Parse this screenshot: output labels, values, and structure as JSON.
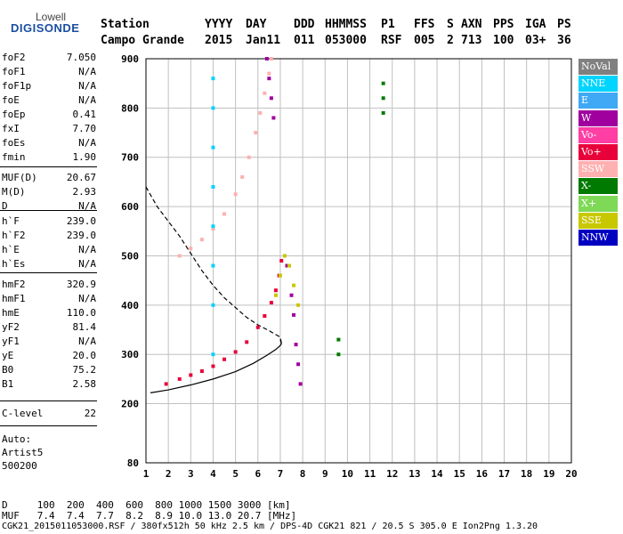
{
  "logo": {
    "top": "Lowell",
    "main": "DIGISONDE"
  },
  "header": {
    "labels": [
      "Station",
      "YYYY",
      "DAY",
      "DDD",
      "HHMMSS",
      "P1",
      "FFS",
      "S",
      "AXN",
      "PPS",
      "IGA",
      "PS"
    ],
    "values": [
      "Campo Grande",
      "2015",
      "Jan11",
      "011",
      "053000",
      "RSF",
      "005",
      "2",
      "713",
      "100",
      "03+",
      "36"
    ]
  },
  "params": [
    {
      "label": "foF2",
      "value": "7.050"
    },
    {
      "label": "foF1",
      "value": "N/A"
    },
    {
      "label": "foF1p",
      "value": "N/A"
    },
    {
      "label": "foE",
      "value": "N/A"
    },
    {
      "label": "foEp",
      "value": "0.41"
    },
    {
      "label": "fxI",
      "value": "7.70"
    },
    {
      "label": "foEs",
      "value": "N/A"
    },
    {
      "label": "fmin",
      "value": "1.90"
    },
    {
      "label": "MUF(D)",
      "value": "20.67"
    },
    {
      "label": "M(D)",
      "value": "2.93"
    },
    {
      "label": "D",
      "value": "N/A"
    },
    {
      "label": "h`F",
      "value": "239.0"
    },
    {
      "label": "h`F2",
      "value": "239.0"
    },
    {
      "label": "h`E",
      "value": "N/A"
    },
    {
      "label": "h`Es",
      "value": "N/A"
    },
    {
      "label": "hmF2",
      "value": "320.9"
    },
    {
      "label": "hmF1",
      "value": "N/A"
    },
    {
      "label": "hmE",
      "value": "110.0"
    },
    {
      "label": "yF2",
      "value": "81.4"
    },
    {
      "label": "yF1",
      "value": "N/A"
    },
    {
      "label": "yE",
      "value": "20.0"
    },
    {
      "label": "B0",
      "value": "75.2"
    },
    {
      "label": "B1",
      "value": "2.58"
    },
    {
      "label": "C-level",
      "value": "22"
    }
  ],
  "autoscale": {
    "line1": "Auto:",
    "line2": "Artist5",
    "line3": "500200"
  },
  "legend": [
    {
      "label": "NoVal",
      "color": "#808080"
    },
    {
      "label": "NNE",
      "color": "#00d4ff"
    },
    {
      "label": "E",
      "color": "#3fa9f5"
    },
    {
      "label": "W",
      "color": "#a0009e"
    },
    {
      "label": "Vo-",
      "color": "#ff3fa4"
    },
    {
      "label": "Vo+",
      "color": "#e8003a"
    },
    {
      "label": "SSW",
      "color": "#ffb0b0"
    },
    {
      "label": "X-",
      "color": "#007a00"
    },
    {
      "label": "X+",
      "color": "#7ed957"
    },
    {
      "label": "SSE",
      "color": "#c8c800"
    },
    {
      "label": "NNW",
      "color": "#0000c0"
    }
  ],
  "footer": {
    "d_row": "D     100  200  400  600  800 1000 1500 3000 [km]",
    "muf_row": "MUF   7.4  7.4  7.7  8.2  8.9 10.0 13.0 20.7 [MHz]",
    "file_row": "CGK21_2015011053000.RSF / 380fx512h 50 kHz 2.5 km / DPS-4D CGK21 821 / 20.5 S 305.0 E Ion2Png 1.3.20"
  },
  "chart_data": {
    "type": "scatter",
    "xlim": [
      1,
      20
    ],
    "ylim": [
      80,
      900
    ],
    "xticks": [
      1,
      2,
      3,
      4,
      5,
      6,
      7,
      8,
      9,
      10,
      11,
      12,
      13,
      14,
      15,
      16,
      17,
      18,
      19,
      20
    ],
    "yticks": [
      80,
      200,
      300,
      400,
      500,
      600,
      700,
      800,
      900
    ],
    "grid": true,
    "legend_position": "right",
    "series": [
      {
        "color": "#e8003a",
        "x": [
          1.9,
          2.5,
          3.0,
          3.5,
          4.0,
          4.5,
          5.0,
          5.5,
          6.0,
          6.3,
          6.6,
          6.8,
          6.95,
          7.05
        ],
        "y": [
          240,
          250,
          258,
          266,
          276,
          290,
          305,
          325,
          355,
          378,
          405,
          430,
          460,
          490
        ]
      },
      {
        "color": "#ffb0b0",
        "x": [
          2.5,
          3.0,
          3.5,
          4.0,
          4.5,
          5.0,
          5.3,
          5.6,
          5.9,
          6.1,
          6.3,
          6.5,
          6.6
        ],
        "y": [
          500,
          515,
          533,
          555,
          585,
          625,
          660,
          700,
          750,
          790,
          830,
          870,
          900
        ]
      },
      {
        "color": "#a0009e",
        "x": [
          6.4,
          6.5,
          6.6,
          6.7,
          7.3,
          7.5,
          7.6,
          7.7,
          7.8,
          7.9
        ],
        "y": [
          900,
          860,
          820,
          780,
          480,
          420,
          380,
          320,
          280,
          240
        ]
      },
      {
        "color": "#00d4ff",
        "x": [
          4.0,
          4.0,
          4.0,
          4.0,
          4.0,
          4.0,
          4.0,
          4.0
        ],
        "y": [
          860,
          800,
          720,
          640,
          560,
          480,
          400,
          300
        ]
      },
      {
        "color": "#007a00",
        "x": [
          11.6,
          11.6,
          11.6,
          9.6,
          9.6
        ],
        "y": [
          850,
          820,
          790,
          330,
          300
        ]
      },
      {
        "color": "#c8c800",
        "x": [
          6.8,
          7.0,
          7.2,
          7.4,
          7.6,
          7.8
        ],
        "y": [
          420,
          460,
          500,
          480,
          440,
          400
        ]
      }
    ],
    "profile_solid": {
      "x": [
        1.2,
        2.0,
        3.0,
        4.0,
        5.0,
        5.8,
        6.4,
        6.8,
        7.0,
        7.05,
        7.0
      ],
      "y": [
        222,
        228,
        238,
        250,
        265,
        282,
        298,
        310,
        318,
        322,
        330
      ]
    },
    "profile_dashed": {
      "x": [
        1.0,
        1.5,
        2.0,
        2.5,
        3.0,
        3.5,
        4.0,
        4.5,
        5.0,
        5.5,
        6.0,
        6.5,
        7.0,
        7.05
      ],
      "y": [
        640,
        600,
        570,
        540,
        505,
        470,
        440,
        415,
        395,
        375,
        360,
        348,
        335,
        322
      ]
    }
  }
}
